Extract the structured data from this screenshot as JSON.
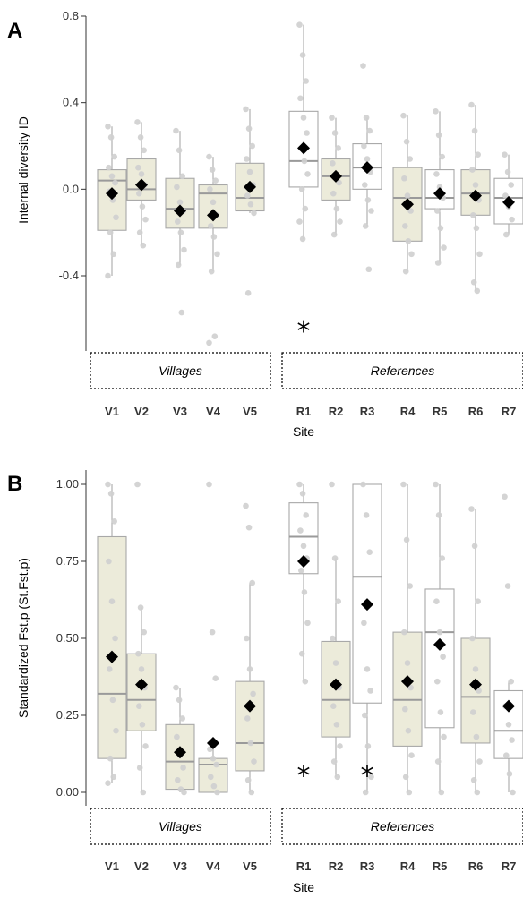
{
  "chart_data": [
    {
      "type": "box",
      "panel": "A",
      "ylabel": "Internal diversity ID",
      "xlabel": "Site",
      "ylim": [
        -0.8,
        0.8
      ],
      "yticks": [
        "0.8",
        "0.4",
        "0.0",
        "-0.4"
      ],
      "ytick_values": [
        0.8,
        0.4,
        0.0,
        -0.4
      ],
      "groups": [
        {
          "label": "Villages",
          "categories": [
            "V1",
            "V2",
            "V3",
            "V4",
            "V5"
          ]
        },
        {
          "label": "References",
          "categories": [
            "R1",
            "R2",
            "R3",
            "R4",
            "R5",
            "R6",
            "R7"
          ]
        }
      ],
      "colors": {
        "shaded_box": "#ecebda",
        "white_box": "#ffffff",
        "box_edge": "#a8a8a8",
        "point": "#cfcfcf",
        "mean": "#000000"
      },
      "series": [
        {
          "category": "V1",
          "shaded": true,
          "whisker_low": -0.4,
          "q1": -0.19,
          "median": 0.04,
          "q3": 0.09,
          "whisker_high": 0.29,
          "mean": -0.02,
          "points": [
            0.29,
            0.24,
            0.15,
            0.1,
            0.06,
            0.03,
            -0.01,
            -0.05,
            -0.13,
            -0.2,
            -0.3,
            -0.4
          ]
        },
        {
          "category": "V2",
          "shaded": true,
          "whisker_low": -0.26,
          "q1": -0.05,
          "median": 0.0,
          "q3": 0.14,
          "whisker_high": 0.31,
          "mean": 0.02,
          "points": [
            0.31,
            0.24,
            0.18,
            0.1,
            0.07,
            0.02,
            -0.02,
            -0.08,
            -0.14,
            -0.2,
            -0.26
          ]
        },
        {
          "category": "V3",
          "shaded": true,
          "whisker_low": -0.35,
          "q1": -0.18,
          "median": -0.09,
          "q3": 0.05,
          "whisker_high": 0.27,
          "mean": -0.1,
          "points": [
            0.27,
            0.18,
            0.06,
            0.01,
            -0.06,
            -0.1,
            -0.15,
            -0.2,
            -0.28,
            -0.35,
            -0.57
          ]
        },
        {
          "category": "V4",
          "shaded": true,
          "whisker_low": -0.38,
          "q1": -0.18,
          "median": -0.02,
          "q3": 0.02,
          "whisker_high": 0.15,
          "mean": -0.12,
          "points": [
            0.15,
            0.09,
            0.04,
            0.0,
            -0.06,
            -0.12,
            -0.17,
            -0.22,
            -0.3,
            -0.38,
            -0.68,
            -0.71
          ]
        },
        {
          "category": "V5",
          "shaded": true,
          "whisker_low": -0.11,
          "q1": -0.1,
          "median": -0.04,
          "q3": 0.12,
          "whisker_high": 0.37,
          "mean": 0.01,
          "points": [
            0.37,
            0.28,
            0.2,
            0.14,
            0.08,
            0.02,
            -0.03,
            -0.07,
            -0.11,
            -0.48
          ]
        },
        {
          "category": "R1",
          "shaded": false,
          "whisker_low": -0.23,
          "q1": 0.01,
          "median": 0.13,
          "q3": 0.36,
          "whisker_high": 0.76,
          "mean": 0.19,
          "points": [
            0.76,
            0.62,
            0.5,
            0.42,
            0.33,
            0.26,
            0.19,
            0.13,
            0.07,
            0.0,
            -0.09,
            -0.15,
            -0.23
          ]
        },
        {
          "category": "R2",
          "shaded": true,
          "whisker_low": -0.21,
          "q1": -0.05,
          "median": 0.06,
          "q3": 0.14,
          "whisker_high": 0.33,
          "mean": 0.06,
          "points": [
            0.33,
            0.26,
            0.19,
            0.12,
            0.07,
            0.03,
            -0.02,
            -0.09,
            -0.15,
            -0.21
          ]
        },
        {
          "category": "R3",
          "shaded": false,
          "whisker_low": -0.17,
          "q1": 0.0,
          "median": 0.1,
          "q3": 0.21,
          "whisker_high": 0.33,
          "mean": 0.1,
          "points": [
            0.57,
            0.33,
            0.27,
            0.2,
            0.14,
            0.08,
            0.02,
            -0.05,
            -0.1,
            -0.17,
            -0.37
          ]
        },
        {
          "category": "R4",
          "shaded": true,
          "whisker_low": -0.38,
          "q1": -0.24,
          "median": -0.04,
          "q3": 0.1,
          "whisker_high": 0.34,
          "mean": -0.07,
          "points": [
            0.34,
            0.22,
            0.14,
            0.05,
            -0.03,
            -0.1,
            -0.17,
            -0.24,
            -0.3,
            -0.38
          ]
        },
        {
          "category": "R5",
          "shaded": false,
          "whisker_low": -0.34,
          "q1": -0.09,
          "median": -0.04,
          "q3": 0.09,
          "whisker_high": 0.36,
          "mean": -0.02,
          "points": [
            0.36,
            0.25,
            0.15,
            0.07,
            0.01,
            -0.04,
            -0.1,
            -0.18,
            -0.27,
            -0.34
          ]
        },
        {
          "category": "R6",
          "shaded": true,
          "whisker_low": -0.47,
          "q1": -0.12,
          "median": -0.02,
          "q3": 0.09,
          "whisker_high": 0.39,
          "mean": -0.03,
          "points": [
            0.39,
            0.27,
            0.16,
            0.09,
            0.02,
            -0.05,
            -0.12,
            -0.18,
            -0.3,
            -0.43,
            -0.47
          ]
        },
        {
          "category": "R7",
          "shaded": false,
          "whisker_low": -0.21,
          "q1": -0.16,
          "median": -0.04,
          "q3": 0.05,
          "whisker_high": 0.16,
          "mean": -0.06,
          "points": [
            0.16,
            0.08,
            0.02,
            -0.03,
            -0.08,
            -0.14,
            -0.21
          ]
        }
      ],
      "annotations": [
        {
          "text": "*",
          "category": "R1",
          "y": -0.62
        }
      ]
    },
    {
      "type": "box",
      "panel": "B",
      "ylabel": "Standardized Fst.p (St.Fst.p)",
      "xlabel": "Site",
      "ylim": [
        -0.04,
        1.04
      ],
      "yticks": [
        "1.00",
        "0.75",
        "0.50",
        "0.25",
        "0.00"
      ],
      "ytick_values": [
        1.0,
        0.75,
        0.5,
        0.25,
        0.0
      ],
      "groups": [
        {
          "label": "Villages",
          "categories": [
            "V1",
            "V2",
            "V3",
            "V4",
            "V5"
          ]
        },
        {
          "label": "References",
          "categories": [
            "R1",
            "R2",
            "R3",
            "R4",
            "R5",
            "R6",
            "R7"
          ]
        }
      ],
      "colors": {
        "shaded_box": "#ecebda",
        "white_box": "#ffffff",
        "box_edge": "#a8a8a8",
        "point": "#cfcfcf",
        "mean": "#000000"
      },
      "series": [
        {
          "category": "V1",
          "shaded": true,
          "whisker_low": 0.03,
          "q1": 0.11,
          "median": 0.32,
          "q3": 0.83,
          "whisker_high": 1.0,
          "mean": 0.44,
          "points": [
            1.0,
            0.97,
            0.88,
            0.75,
            0.62,
            0.5,
            0.4,
            0.3,
            0.2,
            0.11,
            0.05,
            0.03
          ]
        },
        {
          "category": "V2",
          "shaded": true,
          "whisker_low": 0.0,
          "q1": 0.2,
          "median": 0.3,
          "q3": 0.45,
          "whisker_high": 0.6,
          "mean": 0.35,
          "points": [
            1.0,
            0.6,
            0.52,
            0.45,
            0.4,
            0.34,
            0.28,
            0.22,
            0.15,
            0.08,
            0.0
          ]
        },
        {
          "category": "V3",
          "shaded": true,
          "whisker_low": 0.0,
          "q1": 0.01,
          "median": 0.1,
          "q3": 0.22,
          "whisker_high": 0.34,
          "mean": 0.13,
          "points": [
            0.34,
            0.3,
            0.24,
            0.18,
            0.12,
            0.08,
            0.04,
            0.01,
            0.0
          ]
        },
        {
          "category": "V4",
          "shaded": true,
          "whisker_low": 0.0,
          "q1": 0.0,
          "median": 0.09,
          "q3": 0.11,
          "whisker_high": 0.14,
          "mean": 0.16,
          "points": [
            1.0,
            0.52,
            0.37,
            0.14,
            0.11,
            0.09,
            0.05,
            0.02,
            0.0
          ]
        },
        {
          "category": "V5",
          "shaded": true,
          "whisker_low": 0.0,
          "q1": 0.07,
          "median": 0.16,
          "q3": 0.36,
          "whisker_high": 0.68,
          "mean": 0.28,
          "points": [
            0.93,
            0.86,
            0.68,
            0.5,
            0.4,
            0.32,
            0.24,
            0.16,
            0.1,
            0.04,
            0.0
          ]
        },
        {
          "category": "R1",
          "shaded": false,
          "whisker_low": 0.36,
          "q1": 0.71,
          "median": 0.83,
          "q3": 0.94,
          "whisker_high": 1.0,
          "mean": 0.75,
          "points": [
            1.0,
            0.97,
            0.9,
            0.85,
            0.8,
            0.76,
            0.72,
            0.65,
            0.55,
            0.45,
            0.36
          ]
        },
        {
          "category": "R2",
          "shaded": true,
          "whisker_low": 0.05,
          "q1": 0.18,
          "median": 0.3,
          "q3": 0.49,
          "whisker_high": 0.76,
          "mean": 0.35,
          "points": [
            1.0,
            0.76,
            0.62,
            0.5,
            0.42,
            0.34,
            0.28,
            0.22,
            0.15,
            0.1,
            0.05
          ]
        },
        {
          "category": "R3",
          "shaded": false,
          "whisker_low": 0.0,
          "q1": 0.29,
          "median": 0.7,
          "q3": 1.0,
          "whisker_high": 1.0,
          "mean": 0.61,
          "points": [
            1.0,
            0.9,
            0.78,
            0.55,
            0.4,
            0.33,
            0.25,
            0.15,
            0.05,
            0.0
          ]
        },
        {
          "category": "R4",
          "shaded": true,
          "whisker_low": 0.0,
          "q1": 0.15,
          "median": 0.3,
          "q3": 0.52,
          "whisker_high": 1.0,
          "mean": 0.36,
          "points": [
            1.0,
            0.82,
            0.67,
            0.52,
            0.42,
            0.34,
            0.27,
            0.2,
            0.12,
            0.05,
            0.0
          ]
        },
        {
          "category": "R5",
          "shaded": false,
          "whisker_low": 0.0,
          "q1": 0.21,
          "median": 0.52,
          "q3": 0.66,
          "whisker_high": 1.0,
          "mean": 0.48,
          "points": [
            1.0,
            0.9,
            0.76,
            0.62,
            0.52,
            0.44,
            0.36,
            0.26,
            0.18,
            0.1,
            0.0
          ]
        },
        {
          "category": "R6",
          "shaded": true,
          "whisker_low": 0.0,
          "q1": 0.16,
          "median": 0.31,
          "q3": 0.5,
          "whisker_high": 0.92,
          "mean": 0.35,
          "points": [
            0.92,
            0.8,
            0.62,
            0.5,
            0.4,
            0.33,
            0.26,
            0.18,
            0.1,
            0.04,
            0.0
          ]
        },
        {
          "category": "R7",
          "shaded": false,
          "whisker_low": 0.0,
          "q1": 0.11,
          "median": 0.2,
          "q3": 0.33,
          "whisker_high": 0.36,
          "mean": 0.28,
          "points": [
            0.96,
            0.67,
            0.36,
            0.28,
            0.22,
            0.17,
            0.12,
            0.06,
            0.0
          ]
        }
      ],
      "annotations": [
        {
          "text": "*",
          "category": "R1",
          "y": 0.08
        },
        {
          "text": "*",
          "category": "R3",
          "y": 0.08
        }
      ]
    }
  ]
}
